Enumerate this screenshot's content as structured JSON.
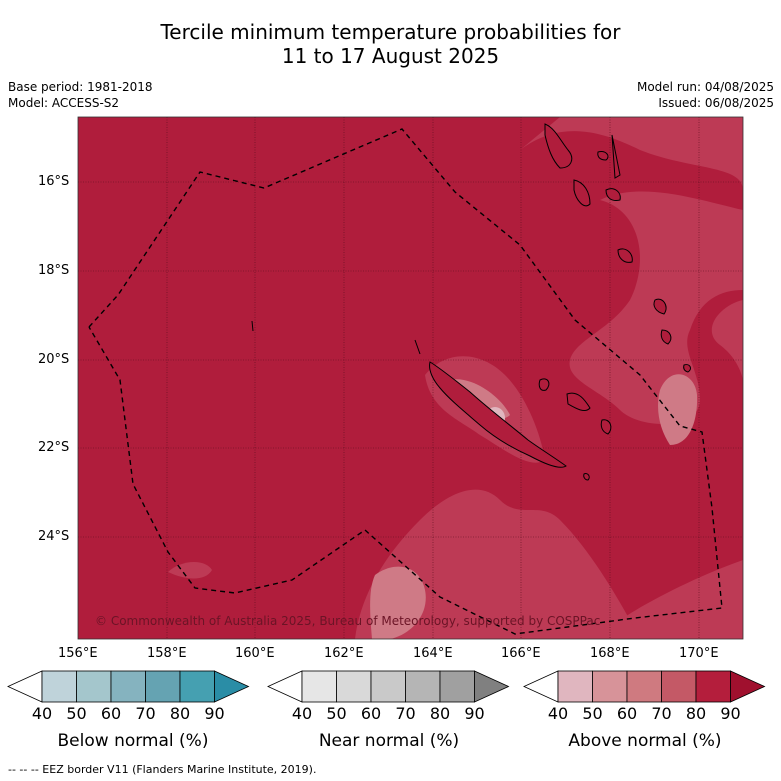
{
  "title_line1": "Tercile minimum temperature probabilities for",
  "title_line2": "11 to 17 August 2025",
  "base_period": "Base period: 1981-2018",
  "model": "Model: ACCESS-S2",
  "model_run": "Model run: 04/08/2025",
  "issued": "Issued: 06/08/2025",
  "copyright": "© Commonwealth of Australia 2025, Bureau of Meteorology, supported by COSPPac",
  "lat_labels": [
    "16°S",
    "18°S",
    "20°S",
    "22°S",
    "24°S"
  ],
  "lon_labels": [
    "156°E",
    "158°E",
    "160°E",
    "162°E",
    "164°E",
    "166°E",
    "168°E",
    "170°E"
  ],
  "colorbars": [
    {
      "label": "Below normal (%)",
      "ticks": [
        "40",
        "50",
        "60",
        "70",
        "80",
        "90"
      ],
      "colors": [
        "#ffffff",
        "#bfd3da",
        "#a4c6cc",
        "#85b3bf",
        "#65a3b2",
        "#45a0b1",
        "#2a8da6"
      ]
    },
    {
      "label": "Near normal (%)",
      "ticks": [
        "40",
        "50",
        "60",
        "70",
        "80",
        "90"
      ],
      "colors": [
        "#ffffff",
        "#e6e6e6",
        "#d9d9d9",
        "#c9c9c9",
        "#b5b5b5",
        "#a0a0a0",
        "#808080"
      ]
    },
    {
      "label": "Above normal (%)",
      "ticks": [
        "40",
        "50",
        "60",
        "70",
        "80",
        "90"
      ],
      "colors": [
        "#ffffff",
        "#e0b6bf",
        "#d79399",
        "#cf7a80",
        "#c45966",
        "#b41e3c",
        "#a0102e"
      ]
    }
  ],
  "footer": "--  --  -- EEZ border V11 (Flanders Marine Institute, 2019).",
  "map_colors": {
    "dominant": "#b01d3c",
    "lighter": "#bd3a55",
    "lightest": "#cf7a86"
  }
}
